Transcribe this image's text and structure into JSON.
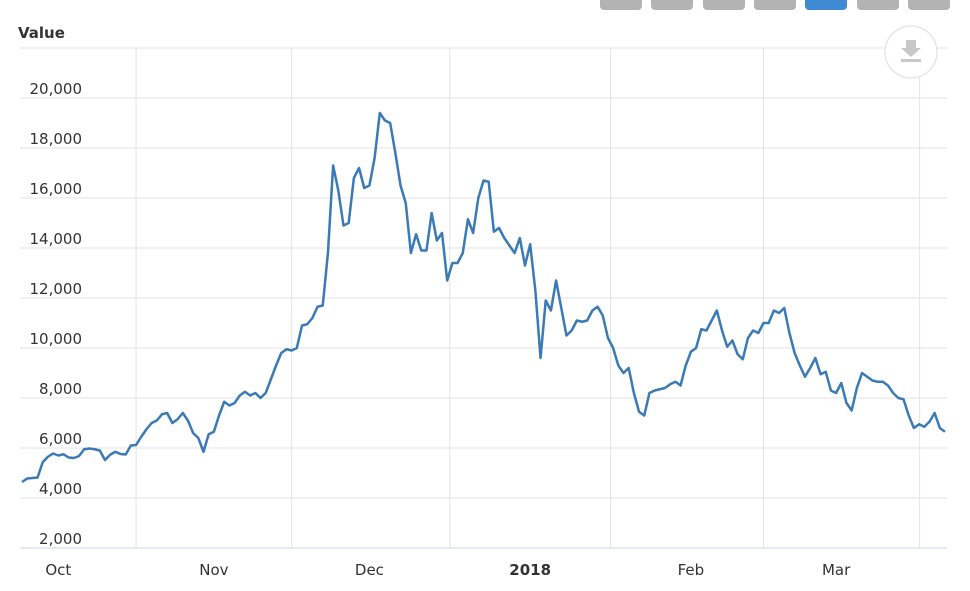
{
  "chart_data": {
    "type": "line",
    "y_label": "Value",
    "color": "#3a7ab6",
    "grid": true,
    "ylim": [
      2000,
      22000
    ],
    "yticks": [
      {
        "value": 2000,
        "label": "2,000"
      },
      {
        "value": 4000,
        "label": "4,000"
      },
      {
        "value": 6000,
        "label": "6,000"
      },
      {
        "value": 8000,
        "label": "8,000"
      },
      {
        "value": 10000,
        "label": "10,000"
      },
      {
        "value": 12000,
        "label": "12,000"
      },
      {
        "value": 14000,
        "label": "14,000"
      },
      {
        "value": 16000,
        "label": "16,000"
      },
      {
        "value": 18000,
        "label": "18,000"
      },
      {
        "value": 20000,
        "label": "20,000"
      }
    ],
    "categories": [
      null,
      null,
      null,
      null,
      null,
      null,
      null,
      "Oct",
      null,
      null,
      null,
      null,
      null,
      null,
      null,
      null,
      null,
      null,
      null,
      null,
      null,
      null,
      null,
      null,
      null,
      null,
      null,
      null,
      null,
      null,
      null,
      null,
      null,
      null,
      null,
      null,
      null,
      "Nov",
      null,
      null,
      null,
      null,
      null,
      null,
      null,
      null,
      null,
      null,
      null,
      null,
      null,
      null,
      null,
      null,
      null,
      null,
      null,
      null,
      null,
      null,
      null,
      null,
      null,
      null,
      null,
      null,
      null,
      "Dec",
      null,
      null,
      null,
      null,
      null,
      null,
      null,
      null,
      null,
      null,
      null,
      null,
      null,
      null,
      null,
      null,
      null,
      null,
      null,
      null,
      null,
      null,
      null,
      null,
      null,
      null,
      null,
      null,
      null,
      null,
      "2018",
      null,
      null,
      null,
      null,
      null,
      null,
      null,
      null,
      null,
      null,
      null,
      null,
      null,
      null,
      null,
      null,
      null,
      null,
      null,
      null,
      null,
      null,
      null,
      null,
      null,
      null,
      null,
      null,
      null,
      null,
      "Feb",
      null,
      null,
      null,
      null,
      null,
      null,
      null,
      null,
      null,
      null,
      null,
      null,
      null,
      null,
      null,
      null,
      null,
      null,
      null,
      null,
      null,
      null,
      null,
      null,
      null,
      null,
      null,
      "Mar",
      null,
      null,
      null,
      null,
      null,
      null,
      null,
      null,
      null,
      null,
      null,
      null,
      null,
      null,
      null,
      null,
      null,
      null,
      null,
      null,
      null
    ],
    "values": [
      4640,
      4780,
      4800,
      4820,
      5430,
      5650,
      5780,
      5700,
      5750,
      5620,
      5600,
      5680,
      5950,
      5980,
      5950,
      5900,
      5520,
      5730,
      5850,
      5760,
      5740,
      6100,
      6120,
      6450,
      6750,
      7000,
      7100,
      7350,
      7400,
      7000,
      7150,
      7400,
      7100,
      6600,
      6400,
      5850,
      6550,
      6650,
      7300,
      7850,
      7700,
      7800,
      8100,
      8250,
      8100,
      8200,
      8000,
      8200,
      8750,
      9300,
      9800,
      9950,
      9900,
      10000,
      10900,
      10950,
      11200,
      11650,
      11700,
      13800,
      17300,
      16300,
      14900,
      15000,
      16800,
      17200,
      16400,
      16500,
      17600,
      19400,
      19100,
      19000,
      17800,
      16500,
      15800,
      13800,
      14550,
      13900,
      13900,
      15400,
      14300,
      14600,
      12700,
      13400,
      13400,
      13800,
      15150,
      14600,
      16000,
      16700,
      16650,
      14650,
      14800,
      14400,
      14100,
      13800,
      14400,
      13300,
      14150,
      12300,
      9600,
      11900,
      11500,
      12700,
      11600,
      10500,
      10700,
      11100,
      11050,
      11100,
      11500,
      11650,
      11300,
      10400,
      10000,
      9300,
      9000,
      9200,
      8200,
      7450,
      7300,
      8200,
      8300,
      8350,
      8400,
      8550,
      8650,
      8500,
      9300,
      9850,
      10000,
      10750,
      10700,
      11100,
      11500,
      10700,
      10050,
      10300,
      9750,
      9550,
      10400,
      10700,
      10600,
      11000,
      11000,
      11500,
      11400,
      11600,
      10600,
      9800,
      9300,
      8850,
      9200,
      9600,
      8950,
      9050,
      8300,
      8200,
      8600,
      7800,
      7500,
      8400,
      9000,
      8850,
      8700,
      8650,
      8650,
      8500,
      8200,
      8000,
      7950,
      7300,
      6800,
      6950,
      6850,
      7050,
      7400,
      6800,
      6650
    ]
  }
}
